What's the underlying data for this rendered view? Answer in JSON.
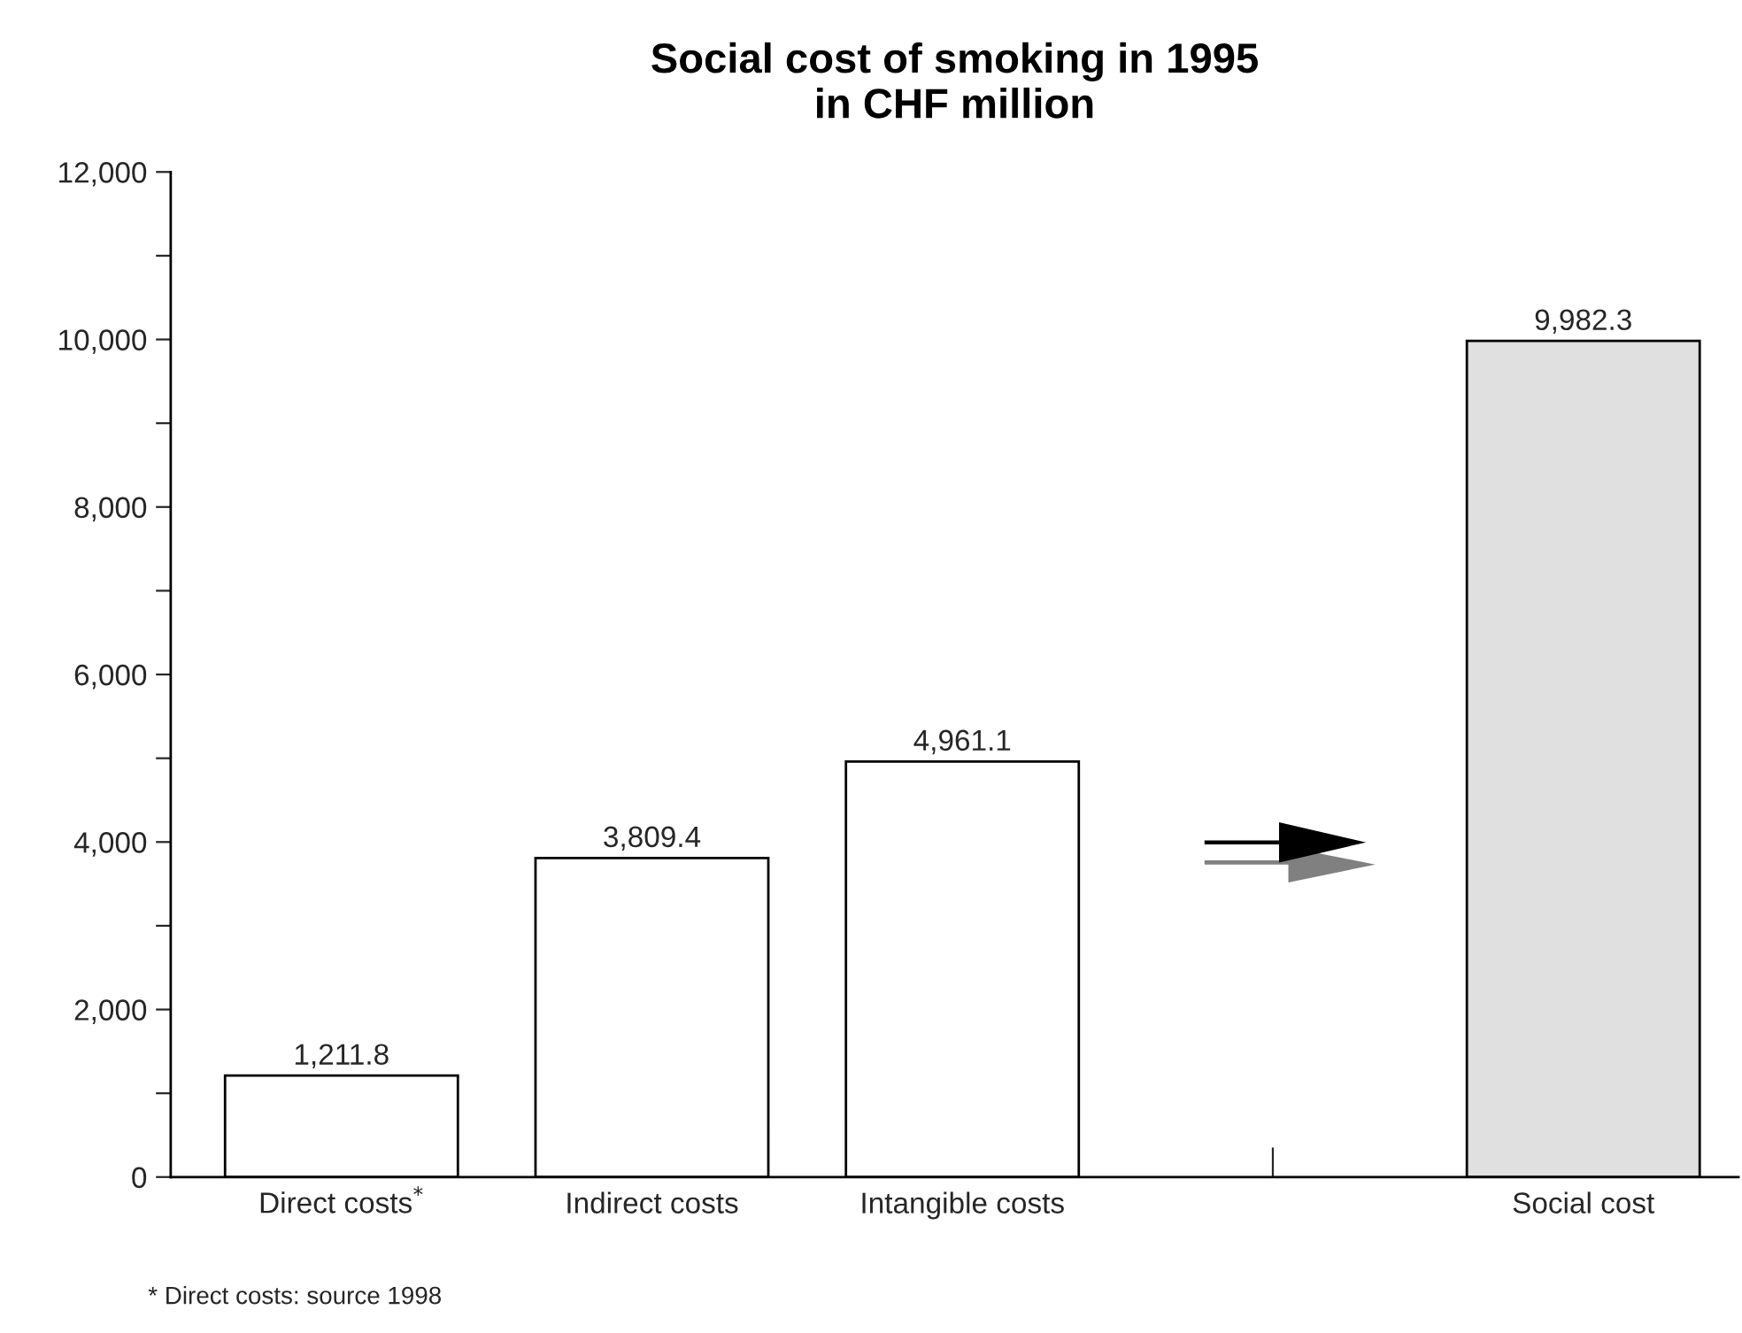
{
  "chart_data": {
    "type": "bar",
    "title": "Social cost of smoking in 1995\nin CHF million",
    "categories": [
      "Direct costs$^{*}$",
      "Indirect costs",
      "Intangible costs",
      null,
      "Social cost"
    ],
    "values": [
      1211.8,
      3809.4,
      4961.1,
      null,
      9982.3
    ],
    "colors": [
      "#ffffff",
      "#ffffff",
      "#ffffff",
      null,
      "#e0e0e0"
    ],
    "value_labels": [
      "1,211.8",
      "3,809.4",
      "4,961.1",
      null,
      "9,982.3"
    ],
    "ylim": [
      0,
      12000
    ],
    "yticks": [
      {
        "value": 0,
        "label": "0"
      },
      {
        "value": 1000,
        "label": null
      },
      {
        "value": 2000,
        "label": "2,000"
      },
      {
        "value": 3000,
        "label": null
      },
      {
        "value": 4000,
        "label": "4,000"
      },
      {
        "value": 5000,
        "label": null
      },
      {
        "value": 6000,
        "label": "6,000"
      },
      {
        "value": 7000,
        "label": null
      },
      {
        "value": 8000,
        "label": "8,000"
      },
      {
        "value": 9000,
        "label": null
      },
      {
        "value": 10000,
        "label": "10,000"
      },
      {
        "value": 11000,
        "label": null
      },
      {
        "value": 12000,
        "label": "12,000"
      }
    ],
    "grid": false,
    "annotations": [
      "* Direct costs: source 1998"
    ]
  }
}
